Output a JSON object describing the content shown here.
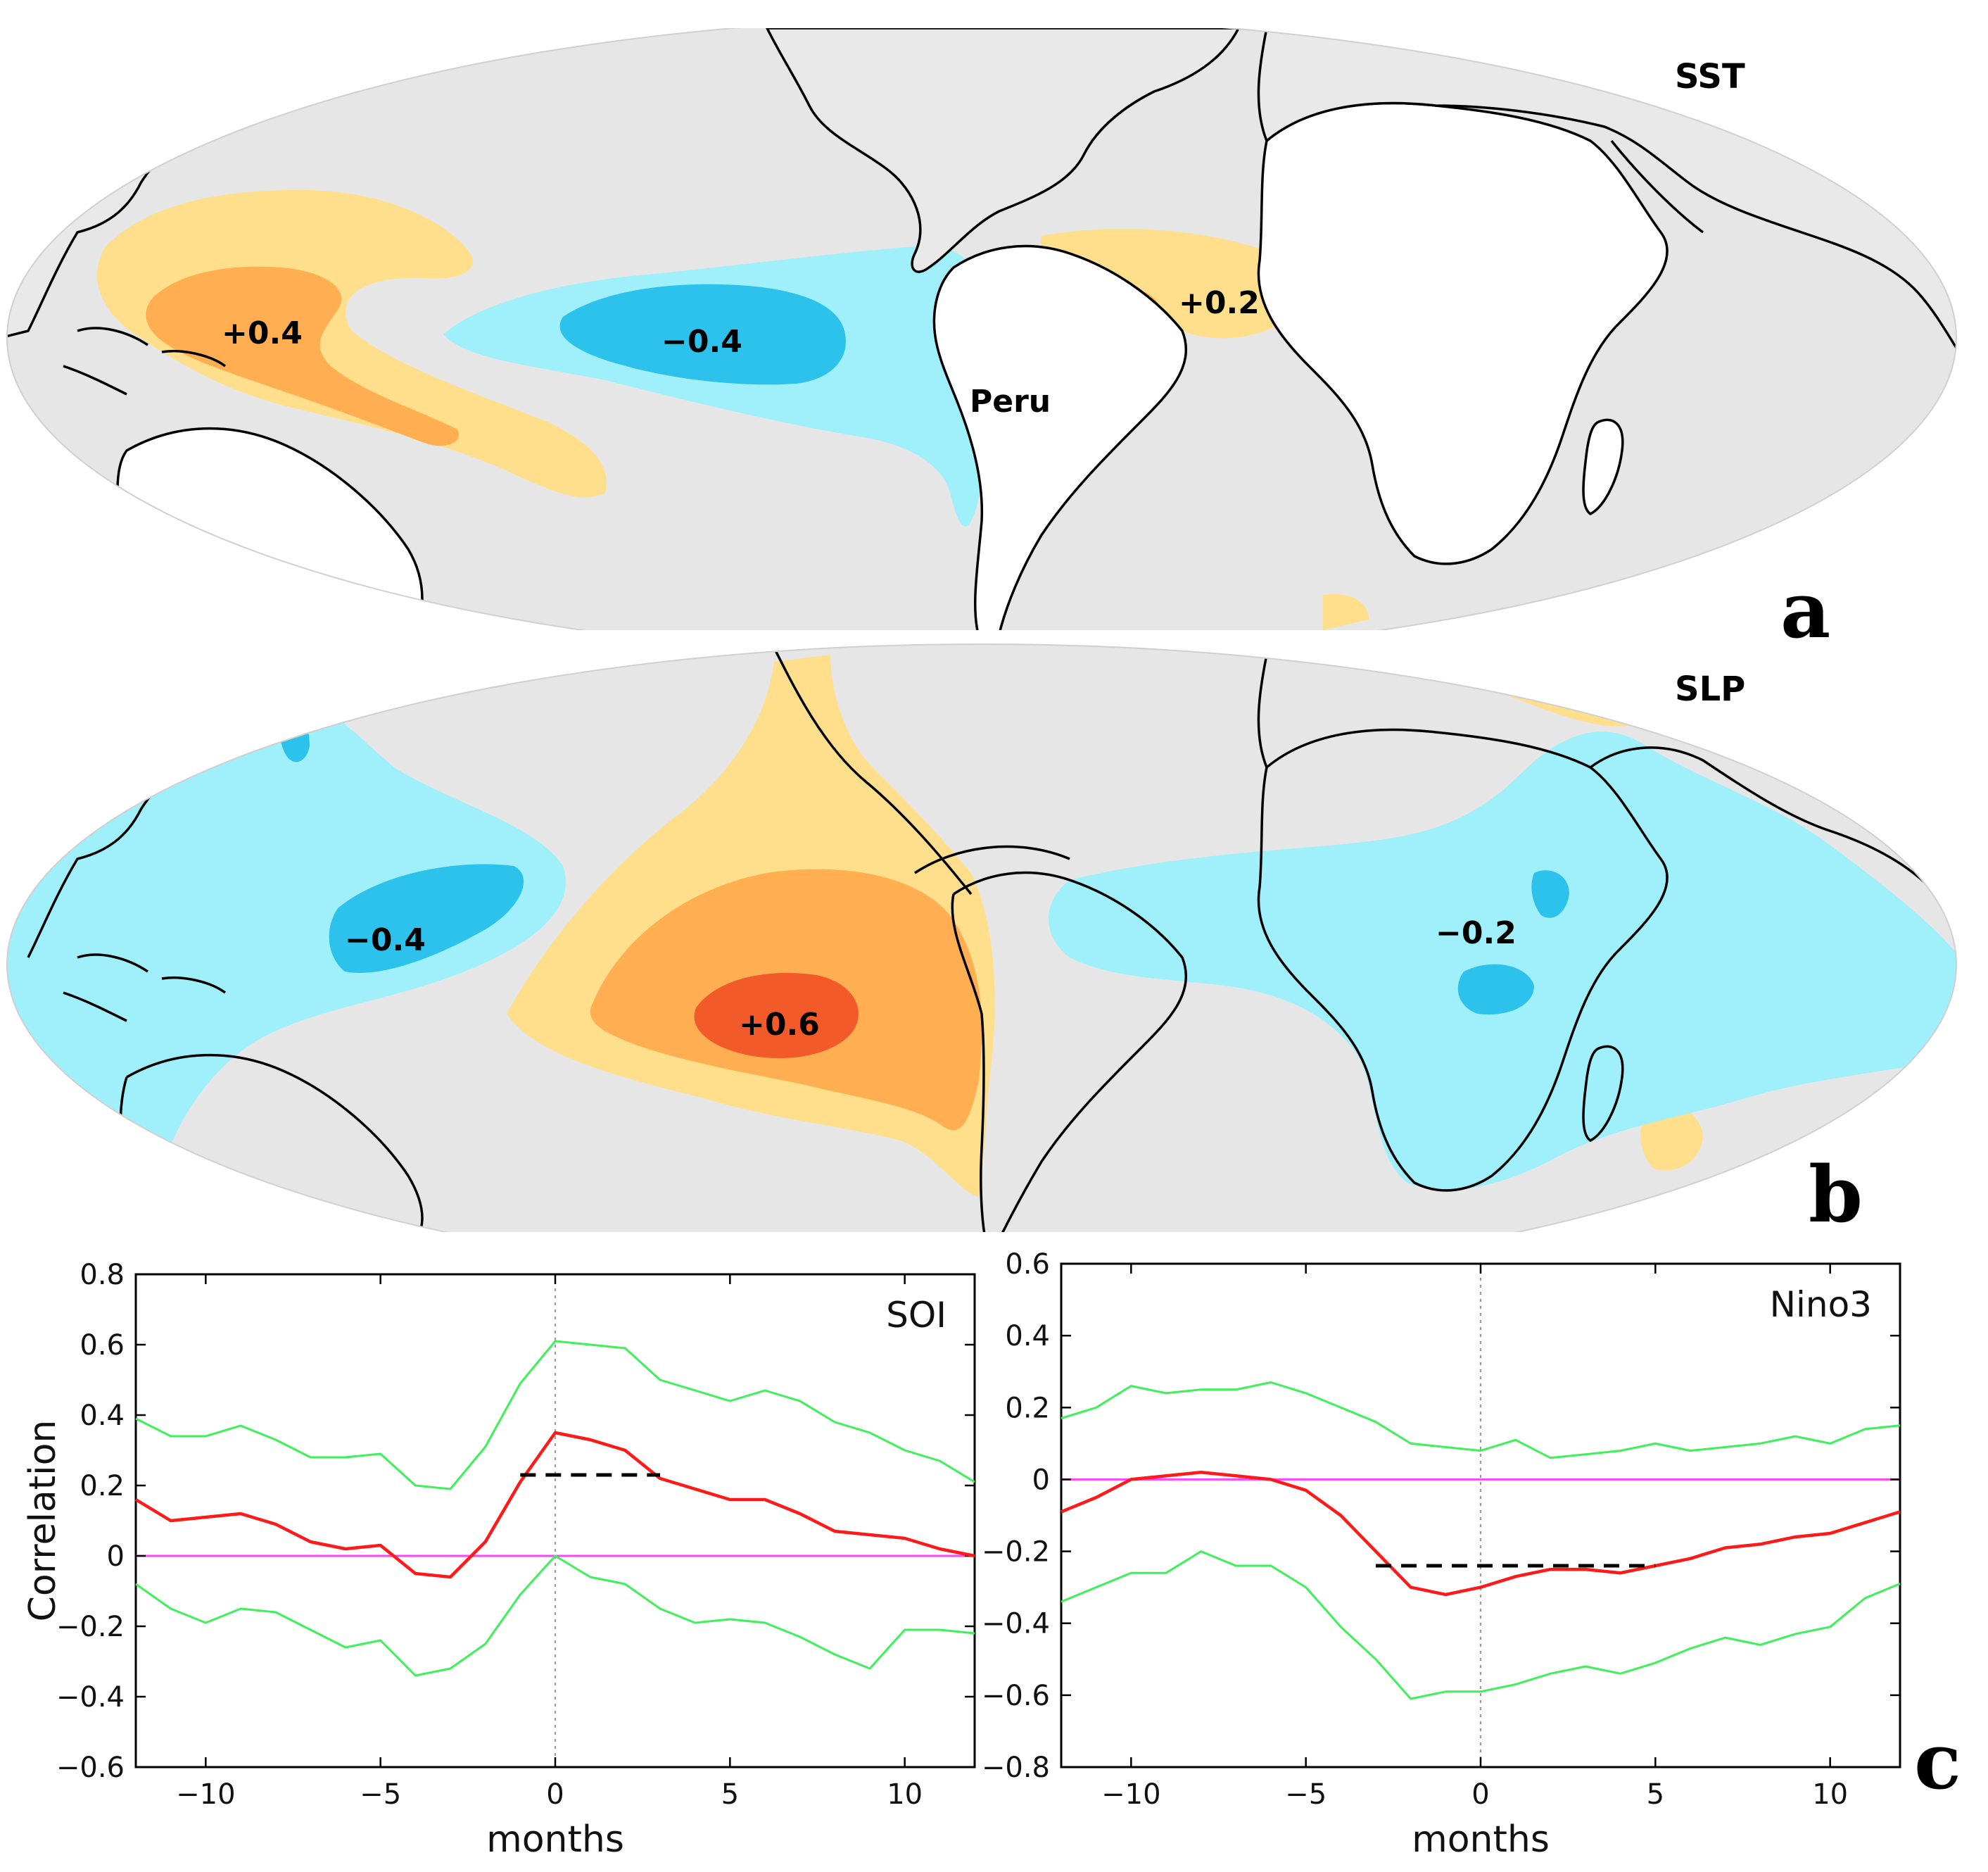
{
  "colors": {
    "ocean": "#e6e6e6",
    "warm_light": "#ffdf8c",
    "warm_mid": "#ffae52",
    "warm_strong": "#f25a2a",
    "cool_light": "#9ff0fb",
    "cool_mid": "#2cc2ec",
    "series_mean": "#ff1a1a",
    "series_bounds": "#3ef05a",
    "zero_line": "#ff44ff",
    "significance": "#000000"
  },
  "panel_a": {
    "letter": "a",
    "title": "SST",
    "labels": [
      "+0.4",
      "−0.4",
      "+0.2",
      "Peru"
    ]
  },
  "panel_b": {
    "letter": "b",
    "title": "SLP",
    "labels": [
      "−0.4",
      "+0.6",
      "−0.2"
    ]
  },
  "panel_c": {
    "letter": "c"
  },
  "chart_data": [
    {
      "type": "line",
      "title": "SOI",
      "xlabel": "months",
      "ylabel": "Correlation",
      "xlim": [
        -12,
        12
      ],
      "ylim": [
        -0.6,
        0.8
      ],
      "xticks": [
        -10,
        -5,
        0,
        5,
        10
      ],
      "xtick_labels": [
        "−10",
        "−5",
        "0",
        "5",
        "10"
      ],
      "yticks": [
        -0.6,
        -0.4,
        -0.2,
        0,
        0.2,
        0.4,
        0.6,
        0.8
      ],
      "ytick_labels": [
        "−0.6",
        "−0.4",
        "−0.2",
        "0",
        "0.2",
        "0.4",
        "0.6",
        "0.8"
      ],
      "x": [
        -12,
        -11,
        -10,
        -9,
        -8,
        -7,
        -6,
        -5,
        -4,
        -3,
        -2,
        -1,
        0,
        1,
        2,
        3,
        4,
        5,
        6,
        7,
        8,
        9,
        10,
        11,
        12
      ],
      "series": [
        {
          "name": "upper bound",
          "color": "#3ef05a",
          "values": [
            0.39,
            0.34,
            0.34,
            0.37,
            0.33,
            0.28,
            0.28,
            0.29,
            0.2,
            0.19,
            0.31,
            0.49,
            0.61,
            0.6,
            0.59,
            0.5,
            0.47,
            0.44,
            0.47,
            0.44,
            0.38,
            0.35,
            0.3,
            0.27,
            0.21
          ]
        },
        {
          "name": "correlation",
          "color": "#ff1a1a",
          "values": [
            0.16,
            0.1,
            0.11,
            0.12,
            0.09,
            0.04,
            0.02,
            0.03,
            -0.05,
            -0.06,
            0.04,
            0.21,
            0.35,
            0.33,
            0.3,
            0.22,
            0.19,
            0.16,
            0.16,
            0.12,
            0.07,
            0.06,
            0.05,
            0.02,
            0.0
          ]
        },
        {
          "name": "lower bound",
          "color": "#3ef05a",
          "values": [
            -0.08,
            -0.15,
            -0.19,
            -0.15,
            -0.16,
            -0.21,
            -0.26,
            -0.24,
            -0.34,
            -0.32,
            -0.25,
            -0.11,
            0.0,
            -0.06,
            -0.08,
            -0.15,
            -0.19,
            -0.18,
            -0.19,
            -0.23,
            -0.28,
            -0.32,
            -0.21,
            -0.21,
            -0.22
          ]
        }
      ],
      "zero_line": 0,
      "significance_segment": {
        "x": [
          -1,
          3
        ],
        "y": 0.23
      }
    },
    {
      "type": "line",
      "title": "Nino3",
      "xlabel": "months",
      "ylabel": "",
      "xlim": [
        -12,
        12
      ],
      "ylim": [
        -0.8,
        0.6
      ],
      "xticks": [
        -10,
        -5,
        0,
        5,
        10
      ],
      "xtick_labels": [
        "−10",
        "−5",
        "0",
        "5",
        "10"
      ],
      "yticks": [
        -0.8,
        -0.6,
        -0.4,
        -0.2,
        0,
        0.2,
        0.4,
        0.6
      ],
      "ytick_labels": [
        "−0.8",
        "−0.6",
        "−0.4",
        "−0.2",
        "0",
        "0.2",
        "0.4",
        "0.6"
      ],
      "x": [
        -12,
        -11,
        -10,
        -9,
        -8,
        -7,
        -6,
        -5,
        -4,
        -3,
        -2,
        -1,
        0,
        1,
        2,
        3,
        4,
        5,
        6,
        7,
        8,
        9,
        10,
        11,
        12
      ],
      "series": [
        {
          "name": "upper bound",
          "color": "#3ef05a",
          "values": [
            0.17,
            0.2,
            0.26,
            0.24,
            0.25,
            0.25,
            0.27,
            0.24,
            0.2,
            0.16,
            0.1,
            0.09,
            0.08,
            0.11,
            0.06,
            0.07,
            0.08,
            0.1,
            0.08,
            0.09,
            0.1,
            0.12,
            0.1,
            0.14,
            0.15
          ]
        },
        {
          "name": "correlation",
          "color": "#ff1a1a",
          "values": [
            -0.09,
            -0.05,
            0.0,
            0.01,
            0.02,
            0.01,
            0.0,
            -0.03,
            -0.1,
            -0.2,
            -0.3,
            -0.32,
            -0.3,
            -0.27,
            -0.25,
            -0.25,
            -0.26,
            -0.24,
            -0.22,
            -0.19,
            -0.18,
            -0.16,
            -0.15,
            -0.12,
            -0.09
          ]
        },
        {
          "name": "lower bound",
          "color": "#3ef05a",
          "values": [
            -0.34,
            -0.3,
            -0.26,
            -0.26,
            -0.2,
            -0.24,
            -0.24,
            -0.3,
            -0.41,
            -0.5,
            -0.61,
            -0.59,
            -0.59,
            -0.57,
            -0.54,
            -0.52,
            -0.54,
            -0.51,
            -0.47,
            -0.44,
            -0.46,
            -0.43,
            -0.41,
            -0.33,
            -0.29
          ]
        }
      ],
      "zero_line": 0,
      "significance_segment": {
        "x": [
          -3,
          5
        ],
        "y": -0.24
      }
    }
  ]
}
